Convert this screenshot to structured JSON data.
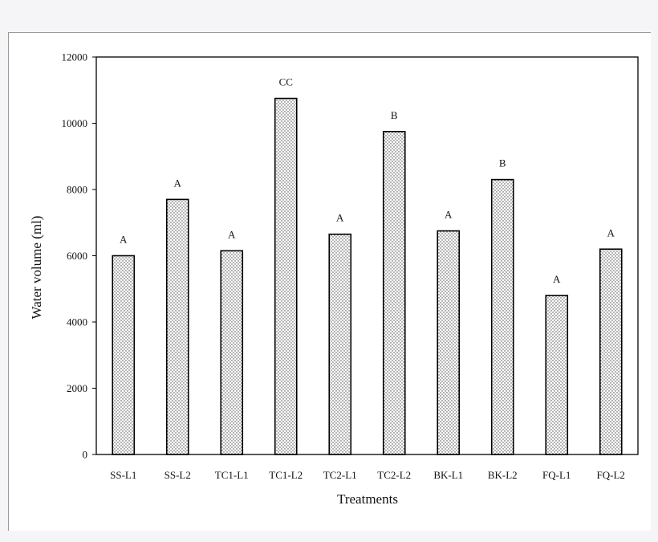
{
  "chart_data": {
    "type": "bar",
    "title": "",
    "xlabel": "Treatments",
    "ylabel": "Water volume (ml)",
    "ylim": [
      0,
      12000
    ],
    "yticks": [
      0,
      2000,
      4000,
      6000,
      8000,
      10000,
      12000
    ],
    "ytick_labels": [
      "0",
      "2000",
      "4000",
      "6000",
      "8000",
      "10000",
      "12000"
    ],
    "categories": [
      "SS-L1",
      "SS-L2",
      "TC1-L1",
      "TC1-L2",
      "TC2-L1",
      "TC2-L2",
      "BK-L1",
      "BK-L2",
      "FQ-L1",
      "FQ-L2"
    ],
    "values": [
      6000,
      7700,
      6150,
      10750,
      6650,
      9750,
      6750,
      8300,
      4800,
      6200
    ],
    "annotations": [
      "A",
      "A",
      "A",
      "CC",
      "A",
      "B",
      "A",
      "B",
      "A",
      "A"
    ],
    "grid": false,
    "bar_fill": "#ffffff",
    "bar_dots": "#444444",
    "axis_color": "#000000"
  }
}
